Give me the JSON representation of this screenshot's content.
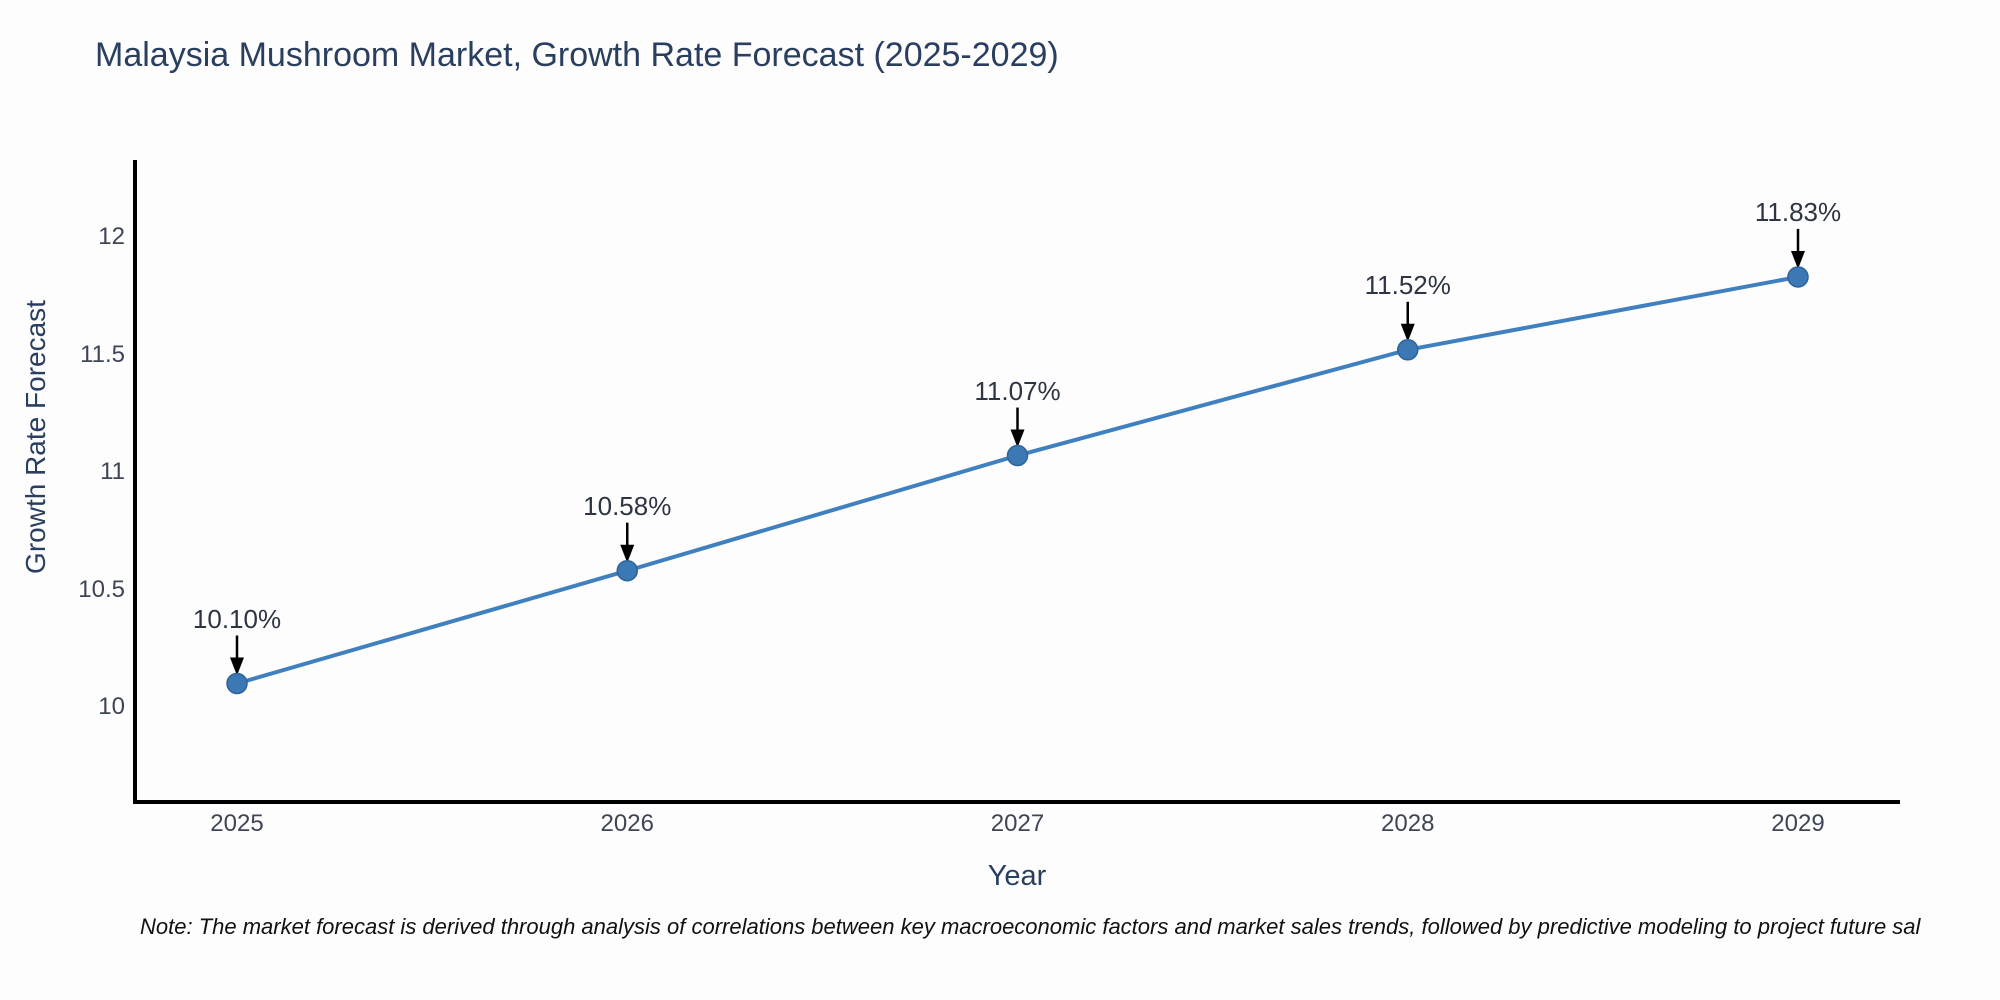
{
  "chart_data": {
    "type": "line",
    "title": "Malaysia Mushroom Market, Growth Rate Forecast (2025-2029)",
    "xlabel": "Year",
    "ylabel": "Growth Rate Forecast",
    "x": [
      "2025",
      "2026",
      "2027",
      "2028",
      "2029"
    ],
    "series": [
      {
        "name": "Growth Rate Forecast",
        "values": [
          10.1,
          10.58,
          11.07,
          11.52,
          11.83
        ],
        "point_labels": [
          "10.10%",
          "10.58%",
          "11.07%",
          "11.52%",
          "11.83%"
        ]
      }
    ],
    "yticks": [
      10,
      10.5,
      11,
      11.5,
      12
    ],
    "ytick_labels": [
      "10",
      "10.5",
      "11",
      "11.5",
      "12"
    ],
    "ylim": [
      9.65,
      12.3
    ],
    "grid": "off",
    "legend": "none",
    "annotation_style": "value labels above points with downward arrows",
    "note": "Note: The market forecast is derived through analysis of correlations between key macroeconomic factors and market sales trends, followed by predictive modeling to project future sal"
  },
  "colors": {
    "line": "#4080bf",
    "marker_fill": "#3c78b4",
    "marker_stroke": "#2d639a",
    "axis": "#000000",
    "arrow": "#000000",
    "title_text": "#2a3f5f",
    "tick_text": "#3e4556",
    "annotation_text": "#2d3442",
    "note_text": "#111111",
    "background": "#fdfdfd"
  }
}
